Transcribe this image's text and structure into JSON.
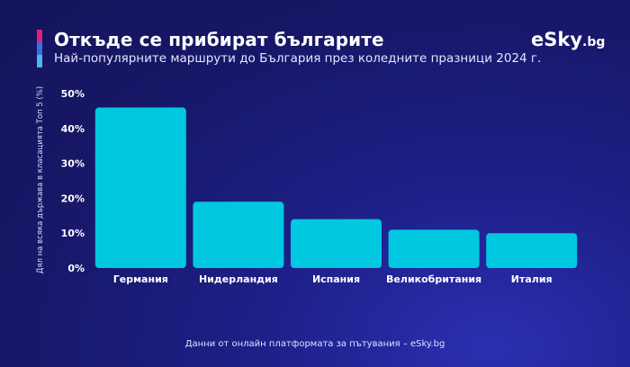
{
  "header": {
    "title": "Откъде се прибират българите",
    "subtitle": "Най-популярните маршрути до България през коледните празници 2024 г.",
    "logo_text": "eSky",
    "logo_tld": ".bg",
    "accent_colors": [
      "#e0217a",
      "#3b6fe0",
      "#49b8f0"
    ]
  },
  "footer": {
    "source": "Данни от онлайн платформата за пътувания – eSky.bg"
  },
  "colors": {
    "bar": "#00c8e0",
    "background": "#1b1c7a"
  },
  "chart_data": {
    "type": "bar",
    "title": "Откъде се прибират българите",
    "subtitle": "Най-популярните маршрути до България през коледните празници 2024 г.",
    "xlabel": "",
    "ylabel": "Дял на всяка държава в класацията Топ 5 (%)",
    "categories": [
      "Германия",
      "Нидерландия",
      "Испания",
      "Великобритания",
      "Италия"
    ],
    "values": [
      46,
      19,
      14,
      11,
      10
    ],
    "ylim": [
      0,
      50
    ],
    "yticks": [
      0,
      10,
      20,
      30,
      40,
      50
    ],
    "ytick_labels": [
      "0%",
      "10%",
      "20%",
      "30%",
      "40%",
      "50%"
    ],
    "grid": false,
    "legend": "none"
  }
}
